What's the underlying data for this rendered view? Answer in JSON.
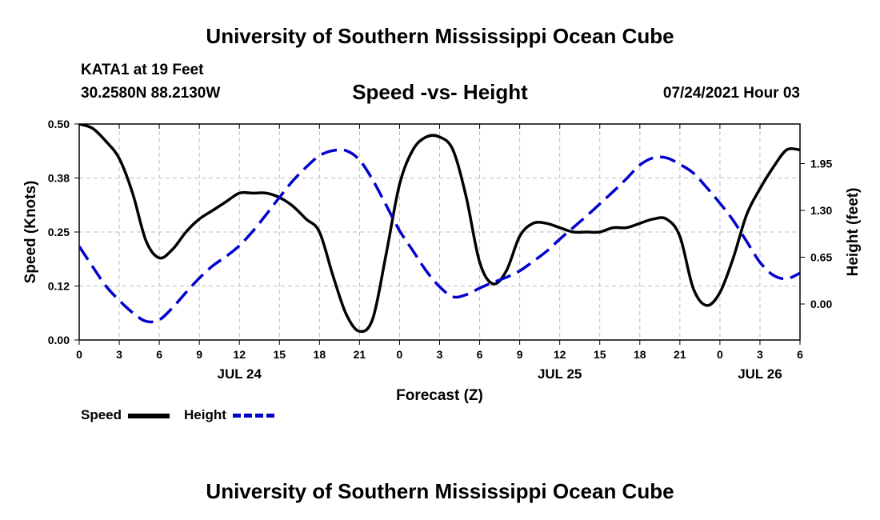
{
  "header": {
    "title": "University of Southern Mississippi Ocean Cube",
    "station": "KATA1 at 19 Feet",
    "coordinates": "30.2580N  88.2130W",
    "subtitle": "Speed -vs- Height",
    "datetime": "07/24/2021 Hour 03"
  },
  "footer": {
    "title": "University of Southern Mississippi Ocean Cube"
  },
  "legend": {
    "speed_label": "Speed",
    "height_label": "Height"
  },
  "colors": {
    "speed": "#000000",
    "height": "#0000cc",
    "grid": "#bbbbbb"
  },
  "chart_data": {
    "type": "line",
    "title": "Speed -vs- Height",
    "xlabel": "Forecast (Z)",
    "ylabel": "Speed (Knots)",
    "y2label": "Height (feet)",
    "x_unit": "hours since 2021-07-24 00Z",
    "xlim": [
      0,
      54
    ],
    "ylim": [
      0,
      0.5
    ],
    "y2lim": [
      -0.5,
      2.5
    ],
    "x_ticks": [
      0,
      3,
      6,
      9,
      12,
      15,
      18,
      21,
      24,
      27,
      30,
      33,
      36,
      39,
      42,
      45,
      48,
      51,
      54
    ],
    "x_tick_labels": [
      "0",
      "3",
      "6",
      "9",
      "12",
      "15",
      "18",
      "21",
      "0",
      "3",
      "6",
      "9",
      "12",
      "15",
      "18",
      "21",
      "0",
      "3",
      "6"
    ],
    "date_labels": [
      {
        "x": 12,
        "label": "JUL 24"
      },
      {
        "x": 36,
        "label": "JUL 25"
      },
      {
        "x": 51,
        "label": "JUL 26"
      }
    ],
    "y_ticks": [
      0,
      0.125,
      0.25,
      0.375,
      0.5
    ],
    "y_tick_labels": [
      "0.00",
      "0.12",
      "0.25",
      "0.38",
      "0.50"
    ],
    "y2_ticks": [
      0,
      0.65,
      1.3,
      1.95
    ],
    "y2_tick_labels": [
      "0.00",
      "0.65",
      "1.30",
      "1.95"
    ],
    "grid": true,
    "legend_position": "bottom-left",
    "series": [
      {
        "name": "Speed",
        "axis": "left",
        "style": "solid",
        "x": [
          0,
          1,
          2,
          3,
          4,
          5,
          6,
          7,
          8,
          9,
          10,
          11,
          12,
          13,
          14,
          15,
          16,
          17,
          18,
          19,
          20,
          21,
          22,
          23,
          24,
          25,
          26,
          27,
          28,
          29,
          30,
          31,
          32,
          33,
          34,
          35,
          36,
          37,
          38,
          39,
          40,
          41,
          42,
          43,
          44,
          45,
          46,
          47,
          48,
          49,
          50,
          51,
          52,
          53,
          54
        ],
        "values": [
          0.5,
          0.49,
          0.46,
          0.42,
          0.34,
          0.23,
          0.19,
          0.21,
          0.25,
          0.28,
          0.3,
          0.32,
          0.34,
          0.34,
          0.34,
          0.33,
          0.31,
          0.28,
          0.25,
          0.15,
          0.06,
          0.02,
          0.05,
          0.2,
          0.36,
          0.44,
          0.47,
          0.47,
          0.44,
          0.33,
          0.18,
          0.13,
          0.16,
          0.24,
          0.27,
          0.27,
          0.26,
          0.25,
          0.25,
          0.25,
          0.26,
          0.26,
          0.27,
          0.28,
          0.28,
          0.24,
          0.12,
          0.08,
          0.11,
          0.19,
          0.29,
          0.35,
          0.4,
          0.44,
          0.44
        ]
      },
      {
        "name": "Height",
        "axis": "right",
        "style": "dashed",
        "x": [
          0,
          1,
          2,
          3,
          4,
          5,
          6,
          7,
          8,
          9,
          10,
          11,
          12,
          13,
          14,
          15,
          16,
          17,
          18,
          19,
          20,
          21,
          22,
          23,
          24,
          25,
          26,
          27,
          28,
          29,
          30,
          31,
          32,
          33,
          34,
          35,
          36,
          37,
          38,
          39,
          40,
          41,
          42,
          43,
          44,
          45,
          46,
          47,
          48,
          49,
          50,
          51,
          52,
          53,
          54
        ],
        "values": [
          0.8,
          0.52,
          0.25,
          0.05,
          -0.12,
          -0.24,
          -0.22,
          -0.05,
          0.16,
          0.36,
          0.53,
          0.66,
          0.81,
          1.01,
          1.24,
          1.48,
          1.71,
          1.9,
          2.06,
          2.13,
          2.13,
          2.0,
          1.72,
          1.37,
          1.02,
          0.74,
          0.46,
          0.24,
          0.1,
          0.13,
          0.22,
          0.3,
          0.37,
          0.46,
          0.59,
          0.73,
          0.9,
          1.06,
          1.22,
          1.39,
          1.56,
          1.74,
          1.93,
          2.03,
          2.03,
          1.94,
          1.82,
          1.62,
          1.4,
          1.16,
          0.87,
          0.58,
          0.4,
          0.35,
          0.43
        ]
      }
    ]
  }
}
